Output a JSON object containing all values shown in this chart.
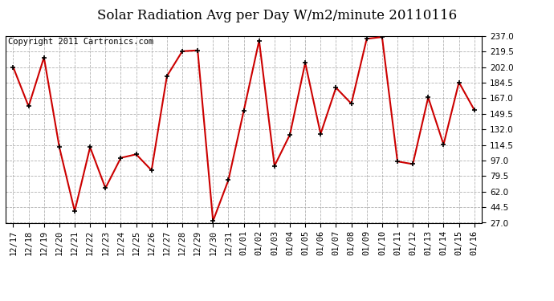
{
  "title": "Solar Radiation Avg per Day W/m2/minute 20110116",
  "copyright": "Copyright 2011 Cartronics.com",
  "labels": [
    "12/17",
    "12/18",
    "12/19",
    "12/20",
    "12/21",
    "12/22",
    "12/23",
    "12/24",
    "12/25",
    "12/26",
    "12/27",
    "12/28",
    "12/29",
    "12/30",
    "12/31",
    "01/01",
    "01/02",
    "01/03",
    "01/04",
    "01/05",
    "01/06",
    "01/07",
    "01/08",
    "01/09",
    "01/10",
    "01/11",
    "01/12",
    "01/13",
    "01/14",
    "01/15",
    "01/16"
  ],
  "values": [
    202.0,
    158.0,
    213.0,
    112.0,
    40.0,
    112.0,
    66.0,
    100.0,
    104.0,
    86.0,
    192.0,
    220.0,
    221.0,
    29.0,
    75.0,
    153.0,
    232.0,
    91.0,
    126.0,
    207.0,
    127.0,
    179.0,
    161.0,
    234.0,
    236.0,
    96.0,
    93.0,
    168.0,
    115.0,
    185.0,
    154.0
  ],
  "y_ticks": [
    27.0,
    44.5,
    62.0,
    79.5,
    97.0,
    114.5,
    132.0,
    149.5,
    167.0,
    184.5,
    202.0,
    219.5,
    237.0
  ],
  "ymin": 27.0,
  "ymax": 237.0,
  "line_color": "#cc0000",
  "marker_color": "#000000",
  "bg_color": "#ffffff",
  "grid_color": "#aaaaaa",
  "title_fontsize": 12,
  "tick_fontsize": 7.5,
  "copyright_fontsize": 7.5,
  "figwidth": 6.9,
  "figheight": 3.75,
  "dpi": 100
}
